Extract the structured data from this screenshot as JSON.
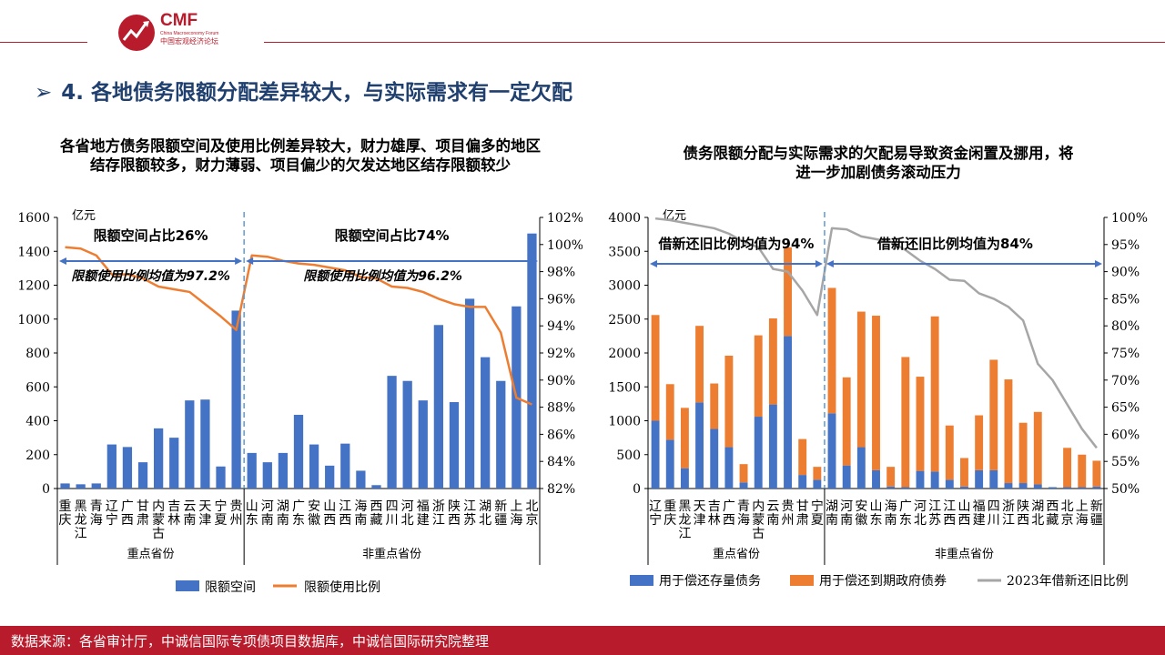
{
  "header": {
    "logo_text": "CMF",
    "logo_sub_en": "China Macroeconomy Forum",
    "logo_sub_cn": "中国宏观经济论坛"
  },
  "page_title": "4. 各地债务限额分配差异较大，与实际需求有一定欠配",
  "footer": {
    "source": "数据来源：各省审计厅，中诚信国际专项债项目数据库，中诚信国际研究院整理"
  },
  "colors": {
    "blue": "#4472c4",
    "orange": "#ed7d31",
    "gray": "#a6a6a6",
    "brand": "#b81c2c",
    "title": "#1f3f6e"
  },
  "chart_data": [
    {
      "type": "bar",
      "title_line1": "各省地方债务限额空间及使用比例差异较大，财力雄厚、项目偏多的地区",
      "title_line2": "结存限额较多，财力薄弱、项目偏少的欠发达地区结存限额较少",
      "y_unit": "亿元",
      "ylim": [
        0,
        1600
      ],
      "yticks": [
        "0",
        "200",
        "400",
        "600",
        "800",
        "1000",
        "1200",
        "1400",
        "1600"
      ],
      "y2lim": [
        82,
        102
      ],
      "y2ticks": [
        "82%",
        "84%",
        "86%",
        "88%",
        "90%",
        "92%",
        "94%",
        "96%",
        "98%",
        "100%",
        "102%"
      ],
      "categories": [
        "重庆",
        "黑龙江",
        "青海",
        "辽宁",
        "广西",
        "甘肃",
        "内蒙古",
        "吉林",
        "云南",
        "天津",
        "宁夏",
        "贵州",
        "山东",
        "河南",
        "湖南",
        "广东",
        "安徽",
        "山西",
        "江西",
        "海南",
        "西藏",
        "四川",
        "河北",
        "福建",
        "浙江",
        "陕西",
        "江苏",
        "湖北",
        "新疆",
        "上海",
        "北京"
      ],
      "group_labels": [
        "重点省份",
        "非重点省份"
      ],
      "group_split": 12,
      "series": [
        {
          "name": "限额空间",
          "kind": "bar",
          "values": [
            30,
            25,
            30,
            260,
            245,
            155,
            355,
            300,
            520,
            525,
            130,
            1050,
            210,
            155,
            210,
            435,
            260,
            135,
            265,
            105,
            20,
            665,
            635,
            520,
            965,
            510,
            1120,
            775,
            635,
            1075,
            1505
          ]
        },
        {
          "name": "限额使用比例",
          "kind": "line",
          "values": [
            99.8,
            99.7,
            99.2,
            97.8,
            97.8,
            97.5,
            96.9,
            96.7,
            96.5,
            95.6,
            94.7,
            93.7,
            99.2,
            99.1,
            98.8,
            98.6,
            98.5,
            98.3,
            98.1,
            97.6,
            97.5,
            96.9,
            96.8,
            96.5,
            96.0,
            95.6,
            95.4,
            95.4,
            93.5,
            88.7,
            88.2
          ]
        }
      ],
      "annotations": {
        "left_share": "限额空间占比26%",
        "right_share": "限额空间占比74%",
        "left_avg": "限额使用比例均值为97.2%",
        "right_avg": "限额使用比例均值为96.2%"
      }
    },
    {
      "type": "bar",
      "title_line1": "债务限额分配与实际需求的欠配易导致资金闲置及挪用，将",
      "title_line2": "进一步加剧债务滚动压力",
      "y_unit": "亿元",
      "ylim": [
        0,
        4000
      ],
      "yticks": [
        "0",
        "500",
        "1000",
        "1500",
        "2000",
        "2500",
        "3000",
        "3500",
        "4000"
      ],
      "y2lim": [
        50,
        100
      ],
      "y2ticks": [
        "50%",
        "55%",
        "60%",
        "65%",
        "70%",
        "75%",
        "80%",
        "85%",
        "90%",
        "95%",
        "100%"
      ],
      "categories": [
        "辽宁",
        "重庆",
        "黑龙江",
        "天津",
        "吉林",
        "广西",
        "青海",
        "内蒙古",
        "云南",
        "贵州",
        "甘肃",
        "宁夏",
        "湖南",
        "河南",
        "安徽",
        "山东",
        "海南",
        "广东",
        "河北",
        "江苏",
        "江西",
        "山西",
        "福建",
        "四川",
        "浙江",
        "陕西",
        "湖北",
        "西藏",
        "北京",
        "上海",
        "新疆"
      ],
      "group_labels": [
        "重点省份",
        "非重点省份"
      ],
      "group_split": 12,
      "series": [
        {
          "name": "用于偿还存量债务",
          "kind": "stack",
          "values": [
            1000,
            720,
            300,
            1270,
            880,
            610,
            90,
            1060,
            1240,
            2250,
            200,
            130,
            1110,
            340,
            610,
            270,
            30,
            20,
            260,
            250,
            130,
            30,
            270,
            270,
            80,
            80,
            60,
            20,
            20,
            20,
            30
          ]
        },
        {
          "name": "用于偿还到期政府债券",
          "kind": "stack",
          "values": [
            1560,
            820,
            890,
            1130,
            670,
            1350,
            270,
            1200,
            1270,
            1310,
            530,
            190,
            1850,
            1300,
            2000,
            2280,
            290,
            1920,
            1390,
            2290,
            800,
            420,
            810,
            1630,
            1530,
            890,
            1070,
            0,
            580,
            480,
            380
          ]
        },
        {
          "name": "2023年借新还旧比例",
          "kind": "line",
          "values": [
            99.8,
            99.5,
            99.0,
            98.5,
            98.0,
            97.0,
            95.5,
            94.5,
            90.5,
            90.0,
            86.5,
            82.0,
            98.0,
            97.8,
            96.5,
            96.0,
            95.5,
            94.0,
            92.0,
            90.5,
            88.5,
            88.3,
            86.0,
            85.0,
            83.5,
            81.0,
            73.0,
            70.0,
            65.5,
            61.0,
            57.5
          ]
        }
      ],
      "annotations": {
        "left_share": "借新还旧比例均值为94%",
        "right_share": "借新还旧比例均值为84%"
      }
    }
  ]
}
